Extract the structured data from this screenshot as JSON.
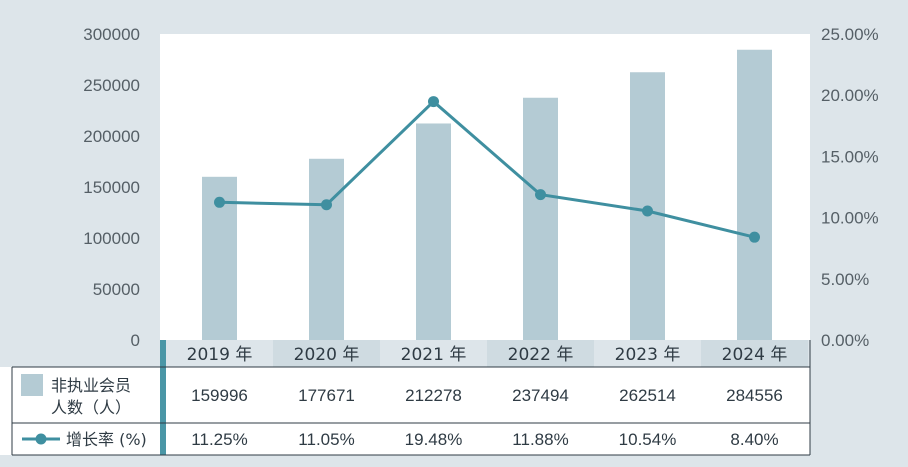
{
  "chart_data": {
    "type": "bar",
    "categories": [
      "2019 年",
      "2020 年",
      "2021 年",
      "2022 年",
      "2023 年",
      "2024 年"
    ],
    "series": [
      {
        "name": "非执业会员人数（人）",
        "name_lines": [
          "非执业会员",
          "人数（人）"
        ],
        "type": "bar",
        "axis": "left",
        "values": [
          159996,
          177671,
          212278,
          237494,
          262514,
          284556
        ],
        "labels": [
          "159996",
          "177671",
          "212278",
          "237494",
          "262514",
          "284556"
        ]
      },
      {
        "name": "增长率 (%)",
        "type": "line",
        "axis": "right",
        "values": [
          11.25,
          11.05,
          19.48,
          11.88,
          10.54,
          8.4
        ],
        "labels": [
          "11.25%",
          "11.05%",
          "19.48%",
          "11.88%",
          "10.54%",
          "8.40%"
        ]
      }
    ],
    "left_axis": {
      "ylim": [
        0,
        300000
      ],
      "ticks": [
        "0",
        "50000",
        "100000",
        "150000",
        "200000",
        "250000",
        "300000"
      ]
    },
    "right_axis": {
      "ylim": [
        0,
        25
      ],
      "ticks": [
        "0.00%",
        "5.00%",
        "10.00%",
        "15.00%",
        "20.00%",
        "25.00%"
      ]
    },
    "colors": {
      "background": "#dde5ea",
      "plot_background": "#ffffff",
      "bar": "#b4cbd4",
      "line": "#3f8fa0",
      "header_band": "#dde5ea",
      "header_band_alt": "#cfdbe1",
      "accent_strip": "#4a96a6"
    },
    "grid": false,
    "legend": "table"
  }
}
